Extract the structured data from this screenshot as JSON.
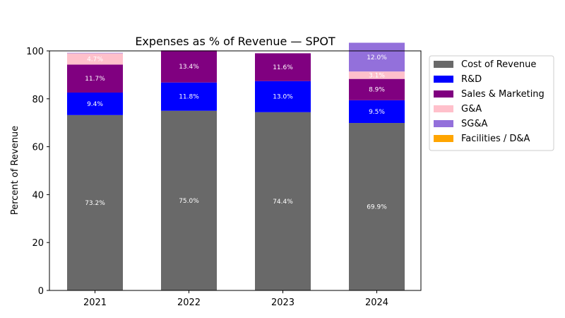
{
  "chart_data": {
    "type": "bar",
    "stacked": true,
    "title": "Expenses as % of Revenue — SPOT",
    "xlabel": "",
    "ylabel": "Percent of Revenue",
    "categories": [
      "2021",
      "2022",
      "2023",
      "2024"
    ],
    "ylim": [
      0,
      100
    ],
    "yticks": [
      0,
      20,
      40,
      60,
      80,
      100
    ],
    "grid": false,
    "legend_position": "outside-right-top",
    "series": [
      {
        "name": "Cost of Revenue",
        "color": "#696969",
        "values": [
          73.2,
          75.0,
          74.4,
          69.9
        ]
      },
      {
        "name": "R&D",
        "color": "#0000ff",
        "values": [
          9.4,
          11.8,
          13.0,
          9.5
        ]
      },
      {
        "name": "Sales & Marketing",
        "color": "#800080",
        "values": [
          11.7,
          13.4,
          11.6,
          8.9
        ]
      },
      {
        "name": "G&A",
        "color": "#ffc0cb",
        "values": [
          4.7,
          null,
          null,
          3.1
        ]
      },
      {
        "name": "SG&A",
        "color": "#9370db",
        "values": [
          0.2,
          null,
          null,
          12.0
        ]
      },
      {
        "name": "Facilities / D&A",
        "color": "#ffa500",
        "values": [
          null,
          null,
          null,
          null
        ]
      }
    ],
    "data_labels": [
      {
        "category": "2021",
        "series": "Cost of Revenue",
        "text": "73.2%"
      },
      {
        "category": "2021",
        "series": "R&D",
        "text": "9.4%"
      },
      {
        "category": "2021",
        "series": "Sales & Marketing",
        "text": "11.7%"
      },
      {
        "category": "2021",
        "series": "G&A",
        "text": "4.7%"
      },
      {
        "category": "2022",
        "series": "Cost of Revenue",
        "text": "75.0%"
      },
      {
        "category": "2022",
        "series": "R&D",
        "text": "11.8%"
      },
      {
        "category": "2022",
        "series": "Sales & Marketing",
        "text": "13.4%"
      },
      {
        "category": "2023",
        "series": "Cost of Revenue",
        "text": "74.4%"
      },
      {
        "category": "2023",
        "series": "R&D",
        "text": "13.0%"
      },
      {
        "category": "2023",
        "series": "Sales & Marketing",
        "text": "11.6%"
      },
      {
        "category": "2024",
        "series": "Cost of Revenue",
        "text": "69.9%"
      },
      {
        "category": "2024",
        "series": "R&D",
        "text": "9.5%"
      },
      {
        "category": "2024",
        "series": "Sales & Marketing",
        "text": "8.9%"
      },
      {
        "category": "2024",
        "series": "G&A",
        "text": "3.1%"
      },
      {
        "category": "2024",
        "series": "SG&A",
        "text": "12.0%"
      }
    ]
  }
}
